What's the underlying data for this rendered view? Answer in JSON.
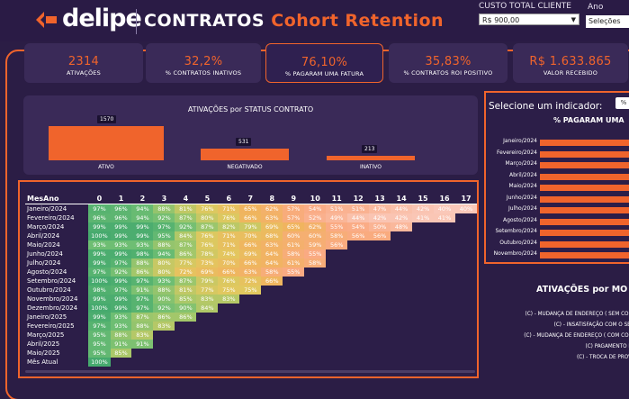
{
  "brand": {
    "name": "delipe"
  },
  "title": {
    "main": "CONTRATOS",
    "sub": "Cohort Retention"
  },
  "filters": {
    "custo_label": "CUSTO TOTAL CLIENTE",
    "custo_value": "R$ 900,00",
    "ano_label": "Ano",
    "ano_button": "Seleções"
  },
  "kpis": [
    {
      "value": "2314",
      "label": "ATIVAÇÕES"
    },
    {
      "value": "32,2%",
      "label": "% CONTRATOS INATIVOS"
    },
    {
      "value": "76,10%",
      "label": "% PAGARAM UMA FATURA"
    },
    {
      "value": "35,83%",
      "label": "% CONTRATOS ROI POSITIVO"
    },
    {
      "value": "R$ 1.633.865",
      "label": "VALOR RECEBIDO"
    }
  ],
  "status_chart": {
    "title": "ATIVAÇÕES por STATUS CONTRATO",
    "chart_data": {
      "type": "bar",
      "title": "ATIVAÇÕES por STATUS CONTRATO",
      "categories": [
        "ATIVO",
        "NEGATIVADO",
        "INATIVO"
      ],
      "values": [
        1570,
        531,
        213
      ],
      "labels": [
        "1570",
        "531",
        "213"
      ]
    }
  },
  "cohort": {
    "header_label": "MesAno",
    "columns": [
      "0",
      "1",
      "2",
      "3",
      "4",
      "5",
      "6",
      "7",
      "8",
      "9",
      "10",
      "11",
      "12",
      "13",
      "14",
      "15",
      "16",
      "17"
    ],
    "rows": [
      {
        "mes": "Janeiro/2024",
        "values": [
          "97%",
          "96%",
          "94%",
          "88%",
          "81%",
          "76%",
          "71%",
          "65%",
          "62%",
          "57%",
          "54%",
          "51%",
          "51%",
          "47%",
          "44%",
          "42%",
          "40%",
          "40%"
        ]
      },
      {
        "mes": "Fevereiro/2024",
        "values": [
          "96%",
          "96%",
          "94%",
          "92%",
          "87%",
          "80%",
          "76%",
          "66%",
          "63%",
          "57%",
          "52%",
          "49%",
          "44%",
          "42%",
          "42%",
          "41%",
          "41%"
        ]
      },
      {
        "mes": "Março/2024",
        "values": [
          "99%",
          "99%",
          "99%",
          "97%",
          "92%",
          "87%",
          "82%",
          "79%",
          "69%",
          "65%",
          "62%",
          "55%",
          "54%",
          "50%",
          "48%"
        ]
      },
      {
        "mes": "Abril/2024",
        "values": [
          "100%",
          "99%",
          "99%",
          "95%",
          "84%",
          "76%",
          "71%",
          "70%",
          "68%",
          "60%",
          "60%",
          "58%",
          "56%",
          "56%"
        ]
      },
      {
        "mes": "Maio/2024",
        "values": [
          "93%",
          "93%",
          "93%",
          "88%",
          "87%",
          "76%",
          "71%",
          "66%",
          "63%",
          "61%",
          "59%",
          "56%"
        ]
      },
      {
        "mes": "Junho/2024",
        "values": [
          "99%",
          "99%",
          "98%",
          "94%",
          "86%",
          "78%",
          "74%",
          "69%",
          "64%",
          "58%",
          "55%"
        ]
      },
      {
        "mes": "Julho/2024",
        "values": [
          "99%",
          "97%",
          "88%",
          "80%",
          "77%",
          "73%",
          "70%",
          "66%",
          "64%",
          "61%",
          "58%"
        ]
      },
      {
        "mes": "Agosto/2024",
        "values": [
          "97%",
          "92%",
          "86%",
          "80%",
          "72%",
          "69%",
          "66%",
          "63%",
          "58%",
          "55%"
        ]
      },
      {
        "mes": "Setembro/2024",
        "values": [
          "100%",
          "99%",
          "97%",
          "93%",
          "87%",
          "79%",
          "76%",
          "72%",
          "66%"
        ]
      },
      {
        "mes": "Outubro/2024",
        "values": [
          "98%",
          "97%",
          "91%",
          "88%",
          "81%",
          "77%",
          "75%",
          "75%"
        ]
      },
      {
        "mes": "Novembro/2024",
        "values": [
          "99%",
          "99%",
          "97%",
          "90%",
          "85%",
          "83%",
          "83%"
        ]
      },
      {
        "mes": "Dezembro/2024",
        "values": [
          "100%",
          "99%",
          "97%",
          "92%",
          "90%",
          "84%"
        ]
      },
      {
        "mes": "Janeiro/2025",
        "values": [
          "99%",
          "93%",
          "87%",
          "86%",
          "86%"
        ]
      },
      {
        "mes": "Fevereiro/2025",
        "values": [
          "97%",
          "93%",
          "88%",
          "83%"
        ]
      },
      {
        "mes": "Março/2025",
        "values": [
          "95%",
          "88%",
          "83%"
        ]
      },
      {
        "mes": "Abril/2025",
        "values": [
          "95%",
          "91%",
          "91%"
        ]
      },
      {
        "mes": "Maio/2025",
        "values": [
          "95%",
          "85%"
        ]
      },
      {
        "mes": "Mês Atual",
        "values": [
          "100%"
        ]
      }
    ]
  },
  "indicator_panel": {
    "title": "Selecione um indicador:",
    "toggle": "%",
    "subtitle": "% PAGARAM UMA",
    "months": [
      "Janeiro/2024",
      "Fevereiro/2024",
      "Março/2024",
      "Abril/2024",
      "Maio/2024",
      "Junho/2024",
      "Julho/2024",
      "Agosto/2024",
      "Setembro/2024",
      "Outubro/2024",
      "Novembro/2024"
    ]
  },
  "activations_panel": {
    "title": "ATIVAÇÕES por MO",
    "items": [
      "(C) - MUDANÇA DE ENDEREÇO ( SEM COBER",
      "(C) - INSATISFAÇÃO COM O SERVI",
      "(C) - MUDANÇA DE ENDEREÇO ( COM COBER",
      "(C) PAGAMENTO DIVI",
      "(C) - TROCA DE PROVED"
    ]
  }
}
